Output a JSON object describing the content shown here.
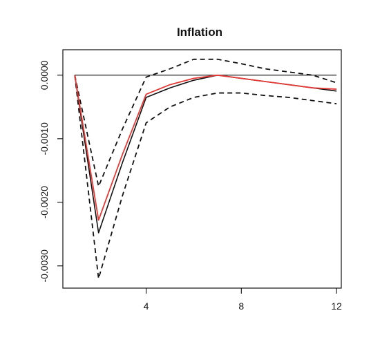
{
  "chart_data": {
    "type": "line",
    "title": "Inflation",
    "xlabel": "",
    "ylabel": "",
    "xlim": [
      0.5,
      12.2
    ],
    "ylim": [
      -0.00335,
      0.0004
    ],
    "x_ticks": [
      4,
      8,
      12
    ],
    "x_tick_labels": [
      "4",
      "8",
      "12"
    ],
    "y_ticks": [
      0.0,
      -0.001,
      -0.002,
      -0.003
    ],
    "y_tick_labels": [
      "0.0000",
      "-0.0010",
      "-0.0020",
      "-0.0030"
    ],
    "grid": false,
    "legend": "none",
    "zero_line": 0.0,
    "x": [
      1,
      2,
      3,
      4,
      5,
      6,
      7,
      8,
      9,
      10,
      11,
      12
    ],
    "series": [
      {
        "role": "point-estimate",
        "style": "solid",
        "color": "#e53935",
        "values": [
          0.0,
          -0.00228,
          -0.00125,
          -0.0003,
          -0.00015,
          -5e-05,
          0.0,
          -5e-05,
          -0.0001,
          -0.00015,
          -0.0002,
          -0.00022
        ]
      },
      {
        "role": "median",
        "style": "solid",
        "color": "#111111",
        "values": [
          0.0,
          -0.00248,
          -0.00138,
          -0.00035,
          -0.0002,
          -8e-05,
          0.0,
          -5e-05,
          -0.0001,
          -0.00015,
          -0.0002,
          -0.00025
        ]
      },
      {
        "role": "upper-band",
        "style": "dashed",
        "color": "#111111",
        "values": [
          0.0,
          -0.00175,
          -0.00085,
          -3e-05,
          0.0001,
          0.00025,
          0.00025,
          0.00018,
          0.0001,
          5e-05,
          0.0,
          -0.00012
        ]
      },
      {
        "role": "lower-band",
        "style": "dashed",
        "color": "#111111",
        "values": [
          0.0,
          -0.0032,
          -0.0019,
          -0.00075,
          -0.0005,
          -0.00035,
          -0.00028,
          -0.00028,
          -0.00032,
          -0.00035,
          -0.0004,
          -0.00045
        ]
      }
    ]
  }
}
